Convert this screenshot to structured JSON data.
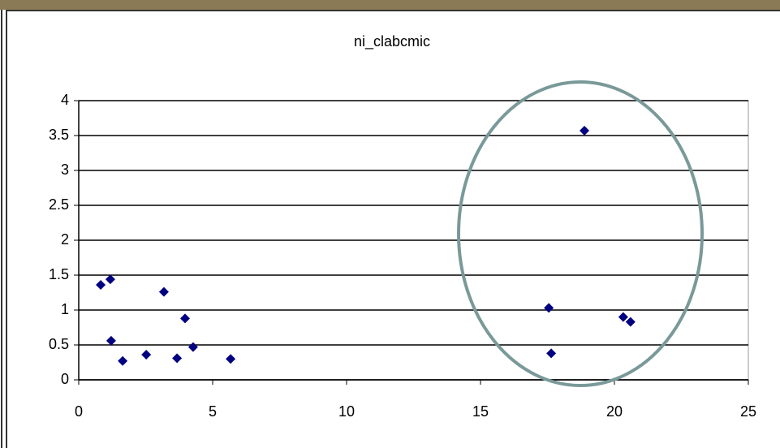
{
  "chart_data": {
    "type": "scatter",
    "title": "ni_clabcmic",
    "series": [
      {
        "name": null,
        "color": "#000080",
        "x": [
          0.82,
          1.18,
          1.21,
          1.64,
          2.52,
          3.18,
          3.67,
          3.97,
          4.27,
          5.67,
          17.55,
          17.64,
          18.88,
          20.33,
          20.6
        ],
        "values": [
          1.36,
          1.44,
          0.56,
          0.27,
          0.36,
          1.26,
          0.31,
          0.88,
          0.47,
          0.3,
          1.03,
          0.38,
          3.57,
          0.9,
          0.83
        ]
      }
    ],
    "xlim": [
      0,
      25
    ],
    "xticks": [
      0,
      5,
      10,
      15,
      20,
      25
    ],
    "ylim": [
      0,
      4
    ],
    "yticks": [
      0,
      0.5,
      1,
      1.5,
      2,
      2.5,
      3,
      3.5,
      4
    ],
    "grid": true
  }
}
